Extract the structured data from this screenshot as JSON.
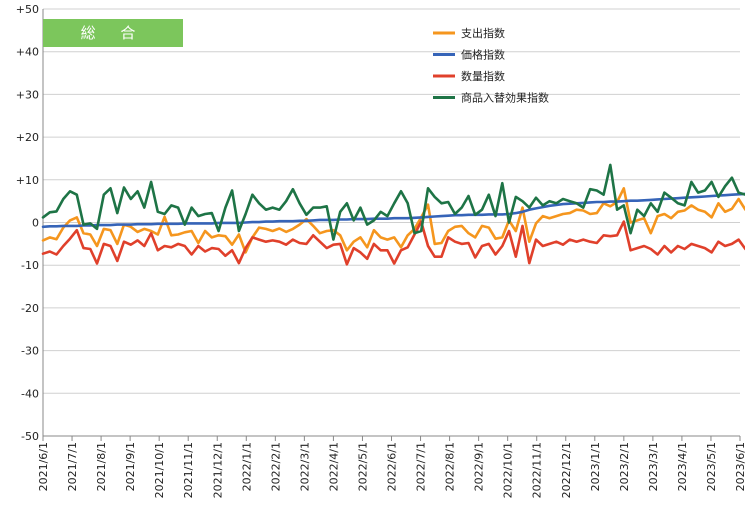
{
  "chart_data": {
    "type": "line",
    "title": "総 合",
    "xlabel": "",
    "ylabel": "",
    "ylim": [
      -50,
      50
    ],
    "y_tick_step": 10,
    "y_tick_labels": [
      "+50",
      "+40",
      "+30",
      "+20",
      "+10",
      "0",
      "-10",
      "-20",
      "-30",
      "-40",
      "-50"
    ],
    "x_tick_labels": [
      "2021/6/1",
      "2021/7/1",
      "2021/8/1",
      "2021/9/1",
      "2021/10/1",
      "2021/11/1",
      "2021/12/1",
      "2022/1/1",
      "2022/2/1",
      "2022/3/1",
      "2022/4/1",
      "2022/5/1",
      "2022/6/1",
      "2022/7/1",
      "2022/8/1",
      "2022/9/1",
      "2022/10/1",
      "2022/11/1",
      "2022/12/1",
      "2023/1/1",
      "2023/2/1",
      "2023/3/1",
      "2023/4/1",
      "2023/5/1",
      "2023/6/1"
    ],
    "grid": "horizontal",
    "legend_position": "top-right",
    "points_per_month": 4.3,
    "series": [
      {
        "name": "支出指数",
        "color": "#f5961e",
        "values": [
          -4.2,
          -3.5,
          -3.9,
          -1.2,
          0.5,
          1.2,
          -2.5,
          -2.8,
          -5.5,
          -1.5,
          -1.8,
          -5.0,
          -0.5,
          -1.0,
          -2.2,
          -1.5,
          -2.0,
          -2.8,
          1.3,
          -3.0,
          -2.8,
          -2.3,
          -2.0,
          -4.8,
          -2.0,
          -3.5,
          -3.0,
          -3.2,
          -5.2,
          -2.8,
          -7.0,
          -3.5,
          -1.2,
          -1.5,
          -2.0,
          -1.4,
          -2.2,
          -1.5,
          -0.5,
          0.8,
          -0.8,
          -2.5,
          -2.0,
          -1.8,
          -3.0,
          -6.5,
          -4.5,
          -3.5,
          -5.8,
          -1.8,
          -3.5,
          -4.0,
          -3.5,
          -5.8,
          -3.0,
          -1.5,
          1.2,
          4.2,
          -5.0,
          -4.8,
          -2.0,
          -1.0,
          -0.8,
          -2.5,
          -3.5,
          -0.8,
          -1.2,
          -3.8,
          -3.5,
          0.5,
          -2.0,
          3.5,
          -4.5,
          -0.2,
          1.5,
          1.0,
          1.5,
          2.0,
          2.2,
          3.0,
          2.8,
          2.0,
          2.2,
          4.5,
          3.8,
          4.8,
          8.0,
          0.0,
          0.5,
          1.0,
          -2.5,
          1.5,
          2.0,
          1.0,
          2.5,
          2.8,
          4.0,
          3.0,
          2.5,
          1.2,
          4.5,
          2.5,
          3.2,
          5.5,
          3.0,
          2.5,
          6.5,
          3.2,
          2.5,
          6.5
        ]
      },
      {
        "name": "価格指数",
        "color": "#3664b8",
        "values": [
          -1.0,
          -0.9,
          -0.9,
          -0.8,
          -0.8,
          -0.8,
          -0.7,
          -0.7,
          -0.6,
          -0.6,
          -0.6,
          -0.5,
          -0.5,
          -0.5,
          -0.4,
          -0.4,
          -0.4,
          -0.3,
          -0.3,
          -0.3,
          -0.3,
          -0.2,
          -0.2,
          -0.2,
          -0.2,
          -0.2,
          -0.1,
          -0.1,
          -0.1,
          -0.1,
          0.0,
          0.1,
          0.1,
          0.2,
          0.2,
          0.3,
          0.3,
          0.3,
          0.4,
          0.4,
          0.5,
          0.6,
          0.6,
          0.6,
          0.7,
          0.7,
          0.8,
          0.8,
          0.8,
          0.9,
          0.9,
          0.9,
          1.0,
          1.0,
          1.0,
          1.1,
          1.2,
          1.3,
          1.4,
          1.5,
          1.6,
          1.7,
          1.7,
          1.8,
          1.8,
          1.8,
          1.9,
          1.9,
          1.9,
          2.0,
          2.2,
          2.5,
          3.0,
          3.3,
          3.6,
          3.9,
          4.1,
          4.3,
          4.4,
          4.5,
          4.6,
          4.7,
          4.8,
          4.8,
          4.9,
          4.9,
          5.0,
          5.1,
          5.1,
          5.2,
          5.3,
          5.4,
          5.5,
          5.6,
          5.7,
          5.8,
          5.9,
          6.0,
          6.1,
          6.2,
          6.3,
          6.4,
          6.5,
          6.6,
          6.7,
          6.8,
          6.9,
          7.0,
          7.1,
          7.2
        ]
      },
      {
        "name": "数量指数",
        "color": "#e0402b",
        "values": [
          -7.3,
          -6.8,
          -7.5,
          -5.5,
          -3.8,
          -1.8,
          -6.0,
          -6.2,
          -9.6,
          -5.0,
          -5.5,
          -9.0,
          -4.5,
          -5.2,
          -4.2,
          -5.5,
          -2.5,
          -6.5,
          -5.5,
          -5.8,
          -5.0,
          -5.5,
          -7.5,
          -5.5,
          -6.8,
          -6.0,
          -6.2,
          -7.8,
          -6.5,
          -9.5,
          -6.0,
          -3.5,
          -4.0,
          -4.5,
          -4.2,
          -4.5,
          -5.2,
          -4.0,
          -4.8,
          -5.0,
          -3.0,
          -4.5,
          -6.0,
          -5.2,
          -5.0,
          -9.8,
          -6.0,
          -7.0,
          -8.5,
          -5.0,
          -6.5,
          -6.5,
          -9.6,
          -6.5,
          -5.8,
          -2.8,
          0.2,
          -5.5,
          -8.0,
          -8.0,
          -3.5,
          -4.5,
          -5.0,
          -4.8,
          -8.2,
          -5.5,
          -5.0,
          -7.5,
          -5.5,
          -2.0,
          -8.0,
          -0.8,
          -9.5,
          -4.0,
          -5.5,
          -5.0,
          -4.5,
          -5.2,
          -4.0,
          -4.5,
          -4.0,
          -4.5,
          -4.8,
          -3.0,
          -3.2,
          -3.0,
          0.2,
          -6.5,
          -6.0,
          -5.5,
          -6.2,
          -7.5,
          -5.5,
          -7.0,
          -5.5,
          -6.2,
          -5.0,
          -5.5,
          -6.0,
          -7.0,
          -4.5,
          -5.5,
          -5.0,
          -4.0,
          -6.2,
          -5.5,
          -3.5,
          -5.5,
          -6.0,
          -3.5
        ]
      },
      {
        "name": "商品入替効果指数",
        "color": "#1e7446",
        "values": [
          1.2,
          2.4,
          2.6,
          5.5,
          7.3,
          6.5,
          -0.5,
          -0.2,
          -1.5,
          6.5,
          8.0,
          2.2,
          8.2,
          5.5,
          7.3,
          3.5,
          9.5,
          2.5,
          2.0,
          4.0,
          3.5,
          -0.5,
          3.5,
          1.5,
          2.0,
          2.2,
          -2.0,
          3.5,
          7.5,
          -2.0,
          2.0,
          6.5,
          4.5,
          3.0,
          3.5,
          3.0,
          5.0,
          7.8,
          4.5,
          1.8,
          3.5,
          3.5,
          3.8,
          -4.0,
          2.5,
          4.5,
          0.5,
          3.5,
          -0.5,
          0.5,
          2.5,
          1.5,
          4.5,
          7.3,
          4.5,
          -2.5,
          -2.0,
          8.0,
          6.0,
          4.5,
          4.8,
          2.0,
          3.5,
          6.2,
          1.8,
          3.0,
          6.5,
          1.5,
          9.2,
          0.0,
          6.0,
          5.0,
          3.5,
          5.8,
          4.0,
          5.0,
          4.5,
          5.5,
          5.0,
          4.5,
          3.5,
          7.8,
          7.5,
          6.5,
          13.5,
          3.0,
          4.0,
          -2.5,
          3.0,
          1.5,
          4.5,
          2.5,
          7.0,
          5.8,
          4.5,
          4.0,
          9.5,
          7.0,
          7.5,
          9.5,
          6.0,
          8.5,
          10.5,
          7.0,
          6.5,
          10.2,
          7.5,
          8.5,
          10.0,
          7.5
        ]
      }
    ]
  }
}
